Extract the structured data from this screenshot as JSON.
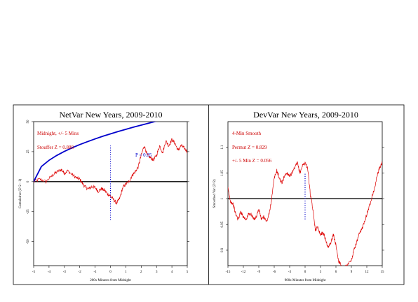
{
  "chart_data": [
    {
      "type": "line",
      "title": "NetVar New Years, 2009-2010",
      "xlabel": "200x Minutes from Midnight",
      "ylabel": "Cumulative (Z^2 - 1)",
      "xlim": [
        -5,
        5
      ],
      "ylim": [
        -70,
        50
      ],
      "x_ticks": [
        -5,
        -4,
        -3,
        -2,
        -1,
        0,
        1,
        2,
        3,
        4,
        5
      ],
      "x_tick_labels": [
        "-5",
        "-4",
        "-3",
        "-2",
        "-1",
        "0",
        "1",
        "2",
        "3",
        "4",
        "5"
      ],
      "y_ticks": [
        -50,
        -25,
        0,
        25,
        50
      ],
      "y_tick_labels": [
        "-50",
        "-25",
        "0",
        "25",
        "50"
      ],
      "grid": false,
      "annotations": [
        {
          "text": "Midnight, +/- 5 Mins",
          "color": "#cc0000"
        },
        {
          "text": "Stouffer Z = 0.888",
          "color": "#cc0000"
        },
        {
          "text": "P = 0.05",
          "color": "#0000cc"
        }
      ],
      "series": [
        {
          "role": "cumulative deviation",
          "color": "#dd0000",
          "x": [
            -5,
            -4.6,
            -4.2,
            -3.8,
            -3.5,
            -3.2,
            -3.0,
            -2.8,
            -2.5,
            -2.2,
            -2.0,
            -1.8,
            -1.6,
            -1.4,
            -1.2,
            -1.0,
            -0.8,
            -0.6,
            -0.4,
            -0.2,
            0.0,
            0.2,
            0.4,
            0.6,
            0.8,
            1.0,
            1.2,
            1.4,
            1.6,
            1.8,
            2.0,
            2.2,
            2.4,
            2.6,
            2.8,
            3.0,
            3.2,
            3.4,
            3.6,
            3.8,
            4.0,
            4.2,
            4.4,
            4.6,
            4.8,
            5.0
          ],
          "y": [
            0,
            2,
            0,
            5,
            8,
            10,
            7,
            9,
            6,
            3,
            2,
            -2,
            -5,
            -6,
            -4,
            -5,
            -8,
            -6,
            -7,
            -10,
            -12,
            -15,
            -18,
            -14,
            -5,
            -2,
            0,
            5,
            8,
            12,
            22,
            30,
            22,
            20,
            18,
            22,
            30,
            24,
            34,
            30,
            35,
            32,
            26,
            30,
            28,
            25
          ]
        },
        {
          "role": "P = 0.05 envelope",
          "color": "#0000cc",
          "x": [
            -5,
            -4.5,
            -4,
            -3.5,
            -3,
            -2.5,
            -2,
            -1.5,
            -1,
            -0.5,
            0,
            0.5,
            1,
            1.5,
            2,
            2.5,
            3,
            3.5,
            4,
            4.5,
            5
          ],
          "y": [
            0,
            12.6,
            17.8,
            21.8,
            25.2,
            28.2,
            30.9,
            33.3,
            35.6,
            37.8,
            39.8,
            41.8,
            43.6,
            45.4,
            47.1,
            48.8,
            50.4,
            51.9,
            53.4,
            54.9,
            56.4
          ]
        }
      ],
      "reference_lines": [
        {
          "axis": "y",
          "value": 0,
          "color": "#000000",
          "style": "solid"
        },
        {
          "axis": "x",
          "value": 0,
          "color": "#0000cc",
          "style": "dotted",
          "from": -32,
          "to": 30
        }
      ]
    },
    {
      "type": "line",
      "title": "DevVar New Years, 2009-2010",
      "xlabel": "900x Minutes from Midnight",
      "ylabel": "Smoothed Var (Z^2)",
      "xlim": [
        -15,
        15
      ],
      "ylim": [
        0.87,
        1.15
      ],
      "x_ticks": [
        -15,
        -12,
        -9,
        -6,
        -3,
        0,
        3,
        6,
        9,
        12,
        15
      ],
      "x_tick_labels": [
        "-15",
        "-12",
        "-9",
        "-6",
        "-3",
        "0",
        "3",
        "6",
        "9",
        "12",
        "15"
      ],
      "y_ticks": [
        0.9,
        0.95,
        1.0,
        1.05,
        1.1
      ],
      "y_tick_labels": [
        "0.9",
        "0.95",
        "1",
        "1.05",
        "1.1"
      ],
      "grid": false,
      "annotations": [
        {
          "text": "4-Min Smooth",
          "color": "#cc0000"
        },
        {
          "text": "Permut Z = 0.829",
          "color": "#cc0000"
        },
        {
          "text": "+/- 5 Min Z = 0.056",
          "color": "#cc0000"
        }
      ],
      "series": [
        {
          "role": "smoothed variance",
          "color": "#dd0000",
          "x": [
            -15,
            -14.5,
            -14,
            -13.5,
            -13,
            -12.5,
            -12,
            -11.5,
            -11,
            -10.5,
            -10,
            -9.5,
            -9,
            -8.5,
            -8,
            -7.5,
            -7,
            -6.5,
            -6,
            -5.5,
            -5,
            -4.5,
            -4,
            -3.5,
            -3,
            -2.5,
            -2,
            -1.5,
            -1,
            -0.5,
            0,
            0.5,
            1,
            1.5,
            2,
            2.5,
            3,
            3.5,
            4,
            4.5,
            5,
            5.5,
            6,
            6.5,
            7,
            7.5,
            8,
            8.5,
            9,
            9.5,
            10,
            10.5,
            11,
            11.5,
            12,
            12.5,
            13,
            13.5,
            14,
            14.5,
            15
          ],
          "y": [
            1.02,
            0.995,
            0.99,
            0.97,
            0.96,
            0.975,
            0.965,
            0.96,
            0.97,
            0.97,
            0.96,
            0.965,
            0.98,
            0.96,
            0.965,
            0.955,
            0.97,
            1.0,
            1.04,
            1.055,
            1.04,
            1.03,
            1.045,
            1.05,
            1.045,
            1.05,
            1.06,
            1.07,
            1.05,
            1.065,
            1.07,
            1.06,
            1.01,
            0.98,
            0.94,
            0.945,
            0.93,
            0.935,
            0.92,
            0.905,
            0.915,
            0.93,
            0.91,
            0.88,
            0.87,
            0.865,
            0.87,
            0.875,
            0.88,
            0.9,
            0.915,
            0.93,
            0.94,
            0.955,
            0.97,
            0.985,
            1.005,
            1.02,
            1.045,
            1.06,
            1.07
          ]
        }
      ],
      "reference_lines": [
        {
          "axis": "y",
          "value": 1.0,
          "color": "#000000",
          "style": "solid"
        },
        {
          "axis": "x",
          "value": 0,
          "color": "#0000cc",
          "style": "dotted",
          "from": 0.96,
          "to": 1.05
        }
      ]
    }
  ]
}
